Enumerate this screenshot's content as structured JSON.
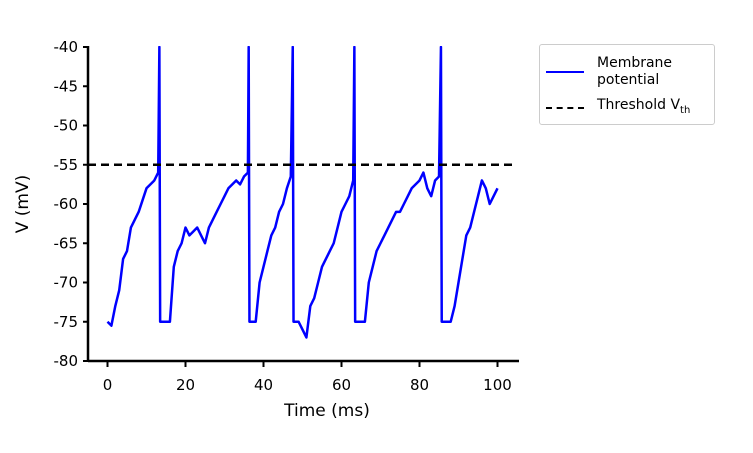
{
  "chart_data": {
    "type": "line",
    "xlabel": "Time (ms)",
    "ylabel": "V (mV)",
    "xlim": [
      -5,
      105
    ],
    "ylim": [
      -80,
      -40
    ],
    "xticks": [
      0,
      20,
      40,
      60,
      80,
      100
    ],
    "yticks": [
      -80,
      -75,
      -70,
      -65,
      -60,
      -55,
      -50,
      -45,
      -40
    ],
    "legend": "upper right outside",
    "series": [
      {
        "name": "Membrane potential",
        "color": "#0000ff",
        "style": "solid",
        "x": [
          0,
          1,
          2,
          3,
          4,
          5,
          6,
          7,
          8,
          9,
          10,
          11,
          12,
          13,
          13.3,
          13.5,
          14,
          15,
          16,
          17,
          18,
          19,
          20,
          21,
          22,
          23,
          24,
          25,
          26,
          27,
          28,
          29,
          30,
          31,
          32,
          33,
          34,
          35,
          36,
          36.2,
          36.4,
          37,
          38,
          39,
          40,
          41,
          42,
          43,
          44,
          45,
          46,
          47,
          47.5,
          47.7,
          48,
          49,
          50,
          51,
          52,
          53,
          54,
          55,
          56,
          57,
          58,
          59,
          60,
          61,
          62,
          63,
          63.3,
          63.5,
          64,
          65,
          66,
          67,
          68,
          69,
          70,
          71,
          72,
          73,
          74,
          75,
          76,
          77,
          78,
          79,
          80,
          81,
          82,
          83,
          84,
          85,
          85.5,
          85.7,
          86,
          87,
          88,
          89,
          90,
          91,
          92,
          93,
          94,
          95,
          96,
          97,
          98,
          99,
          100
        ],
        "values": [
          -75,
          -75.5,
          -73,
          -71,
          -67,
          -66,
          -63,
          -62,
          -61,
          -59.5,
          -58,
          -57.5,
          -57,
          -56,
          -40,
          -75,
          -75,
          -75,
          -75,
          -68,
          -66,
          -65,
          -63,
          -64,
          -63.5,
          -63,
          -64,
          -65,
          -63,
          -62,
          -61,
          -60,
          -59,
          -58,
          -57.5,
          -57,
          -57.5,
          -56.5,
          -56,
          -40,
          -75,
          -75,
          -75,
          -70,
          -68,
          -66,
          -64,
          -63,
          -61,
          -60,
          -58,
          -56.5,
          -40,
          -75,
          -75,
          -75,
          -76,
          -77,
          -73,
          -72,
          -70,
          -68,
          -67,
          -66,
          -65,
          -63,
          -61,
          -60,
          -59,
          -57,
          -40,
          -75,
          -75,
          -75,
          -75,
          -70,
          -68,
          -66,
          -65,
          -64,
          -63,
          -62,
          -61,
          -61,
          -60,
          -59,
          -58,
          -57.5,
          -57,
          -56,
          -58,
          -59,
          -57,
          -56.5,
          -40,
          -75,
          -75,
          -75,
          -75,
          -73,
          -70,
          -67,
          -64,
          -63,
          -61,
          -59,
          -57,
          -58,
          -60,
          -59,
          -58
        ]
      },
      {
        "name": "Threshold V",
        "name_sub": "th",
        "color": "#000000",
        "style": "dashed",
        "x": [
          -5,
          105
        ],
        "values": [
          -55,
          -55
        ]
      }
    ]
  }
}
